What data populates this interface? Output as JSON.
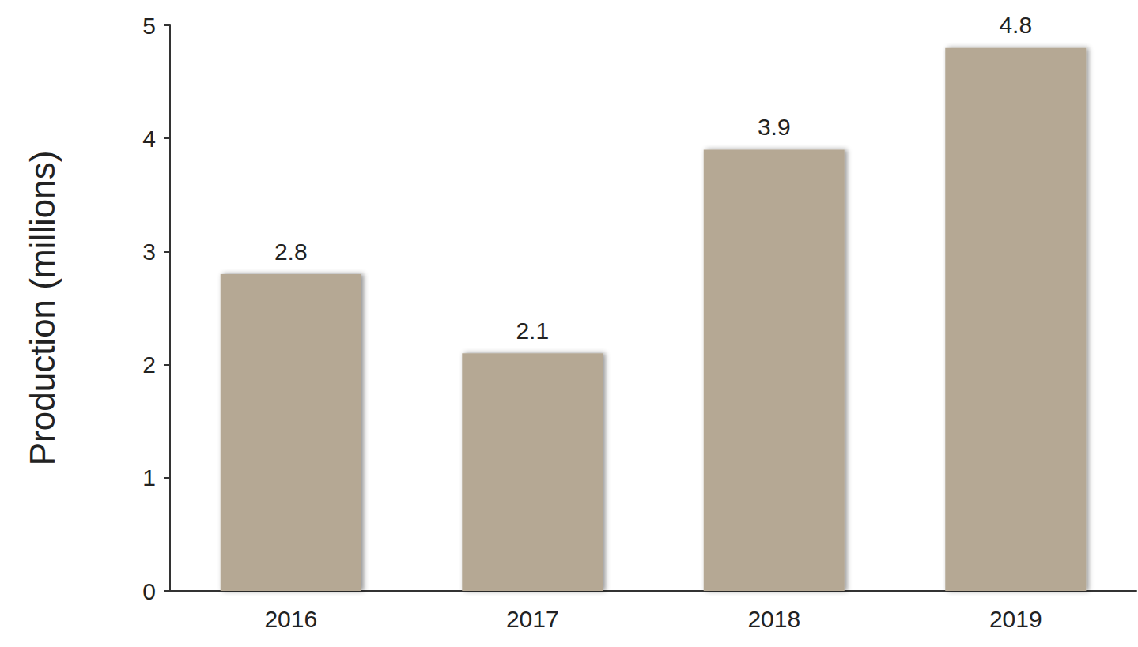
{
  "chart_data": {
    "type": "bar",
    "y_label": "Production (millions)",
    "categories": [
      "2016",
      "2017",
      "2018",
      "2019"
    ],
    "values": [
      2.8,
      2.1,
      3.9,
      4.8
    ],
    "color": "#b5a894",
    "ylim": [
      0,
      5
    ],
    "yticks": [
      0,
      1,
      2,
      3,
      4,
      5
    ],
    "grid": false,
    "data_labels": true
  }
}
